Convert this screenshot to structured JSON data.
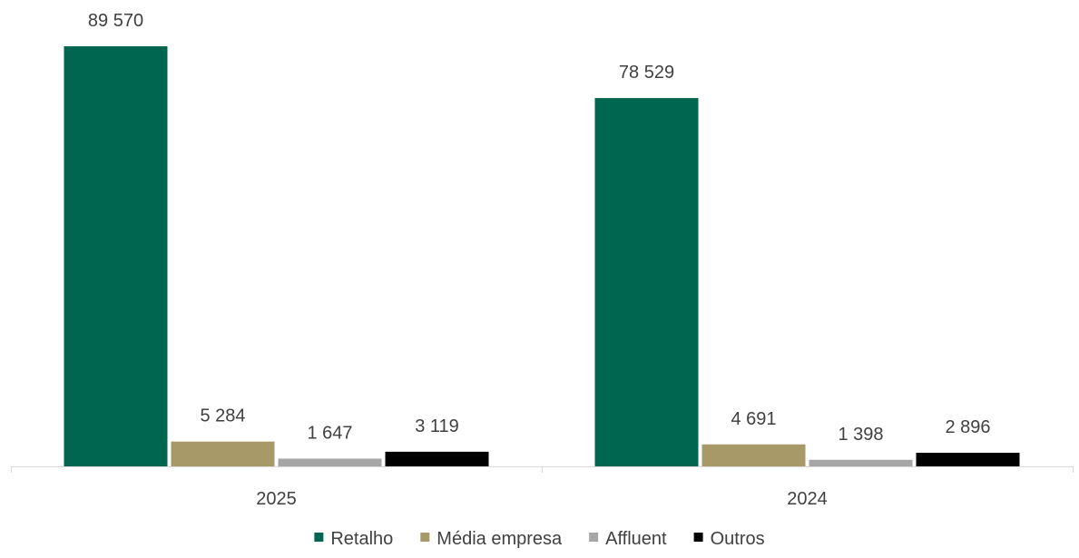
{
  "chart_data": {
    "type": "bar",
    "categories": [
      "2025",
      "2024"
    ],
    "series": [
      {
        "name": "Retalho",
        "values": [
          89570,
          78529
        ],
        "labels": [
          "89 570",
          "78 529"
        ],
        "color": "#00664F"
      },
      {
        "name": "Média empresa",
        "values": [
          5284,
          4691
        ],
        "labels": [
          "5 284",
          "4 691"
        ],
        "color": "#A89968"
      },
      {
        "name": "Affluent",
        "values": [
          1647,
          1398
        ],
        "labels": [
          "1 647",
          "1 398"
        ],
        "color": "#A6A6A6"
      },
      {
        "name": "Outros",
        "values": [
          3119,
          2896
        ],
        "labels": [
          "3 119",
          "2 896"
        ],
        "color": "#000000"
      }
    ],
    "title": "",
    "xlabel": "",
    "ylabel": "",
    "ylim": [
      0,
      89570
    ],
    "grid": false,
    "legend": "bottom",
    "axis_color": "#D9D9D9"
  }
}
